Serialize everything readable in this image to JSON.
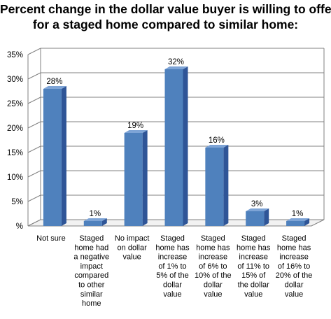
{
  "chart_data": {
    "type": "bar",
    "title_lines": [
      "Percent change in the dollar value buyer is willing to offer",
      "for a staged home compared to similar home:"
    ],
    "categories": [
      [
        "Not sure"
      ],
      [
        "Staged",
        "home had",
        "a negative",
        "impact",
        "compared",
        "to other",
        "similar",
        "home"
      ],
      [
        "No impact",
        "on dollar",
        "value"
      ],
      [
        "Staged",
        "home has",
        "increase",
        "of 1% to",
        "5% of the",
        "dollar",
        "value"
      ],
      [
        "Staged",
        "home has",
        "increase",
        "of 6% to",
        "10% of the",
        "dollar",
        "value"
      ],
      [
        "Staged",
        "home has",
        "increase",
        "of 11% to",
        "15% of",
        "the dollar",
        "value"
      ],
      [
        "Staged",
        "home has",
        "increase",
        "of 16% to",
        "20% of the",
        "dollar",
        "value"
      ]
    ],
    "values": [
      28,
      1,
      19,
      32,
      16,
      3,
      1
    ],
    "data_labels": [
      "28%",
      "1%",
      "19%",
      "32%",
      "16%",
      "3%",
      "1%"
    ],
    "y_ticks": [
      "35%",
      "30%",
      "25%",
      "20%",
      "15%",
      "10%",
      "5%",
      "%"
    ],
    "ylim": [
      0,
      35
    ],
    "grid": true,
    "bar_color": "#4F81BD",
    "bar_side_color": "#2F5597",
    "bar_top_color": "#7EA4D6"
  }
}
